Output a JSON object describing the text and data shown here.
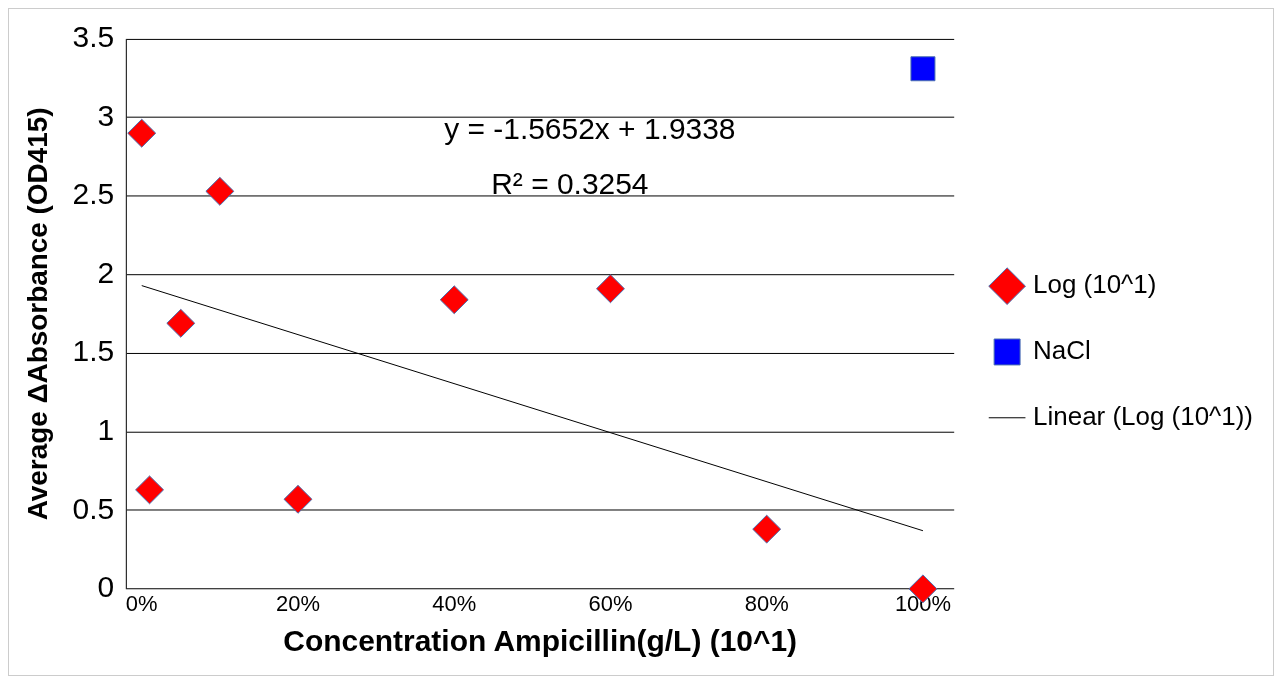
{
  "chart_data": {
    "type": "scatter",
    "xlabel": "Concentration Ampicillin(g/L) (10^1)",
    "ylabel": "Average ΔAbsorbance (OD415)",
    "xlim": [
      -0.02,
      1.04
    ],
    "xticks": [
      {
        "value": 0,
        "label": "0%"
      },
      {
        "value": 0.2,
        "label": "20%"
      },
      {
        "value": 0.4,
        "label": "40%"
      },
      {
        "value": 0.6,
        "label": "60%"
      },
      {
        "value": 0.8,
        "label": "80%"
      },
      {
        "value": 1,
        "label": "100%"
      }
    ],
    "ylim": [
      0,
      3.5
    ],
    "yticks": [
      0,
      0.5,
      1,
      1.5,
      2,
      2.5,
      3,
      3.5
    ],
    "grid": "y",
    "legend": "right",
    "series": [
      {
        "name": "Log (10^1)",
        "type": "scatter",
        "marker": "diamond",
        "color": "#ff0000",
        "x": [
          0,
          0.1,
          0.05,
          0.01,
          0.2,
          0.4,
          0.6,
          0.8,
          1
        ],
        "values": [
          2.9,
          2.53,
          1.69,
          0.63,
          0.57,
          1.84,
          1.91,
          0.38,
          0
        ]
      },
      {
        "name": "NaCl",
        "type": "scatter",
        "marker": "square",
        "color": "#0000ff",
        "x": [
          1
        ],
        "values": [
          3.31
        ]
      },
      {
        "name": "Linear (Log (10^1))",
        "type": "line",
        "marker": "none",
        "color": "#000000",
        "x": [
          0,
          1
        ],
        "values": [
          1.93,
          0.37
        ]
      }
    ],
    "annotations": [
      "y = -1.5652x + 1.9338",
      "R² = 0.3254"
    ]
  }
}
